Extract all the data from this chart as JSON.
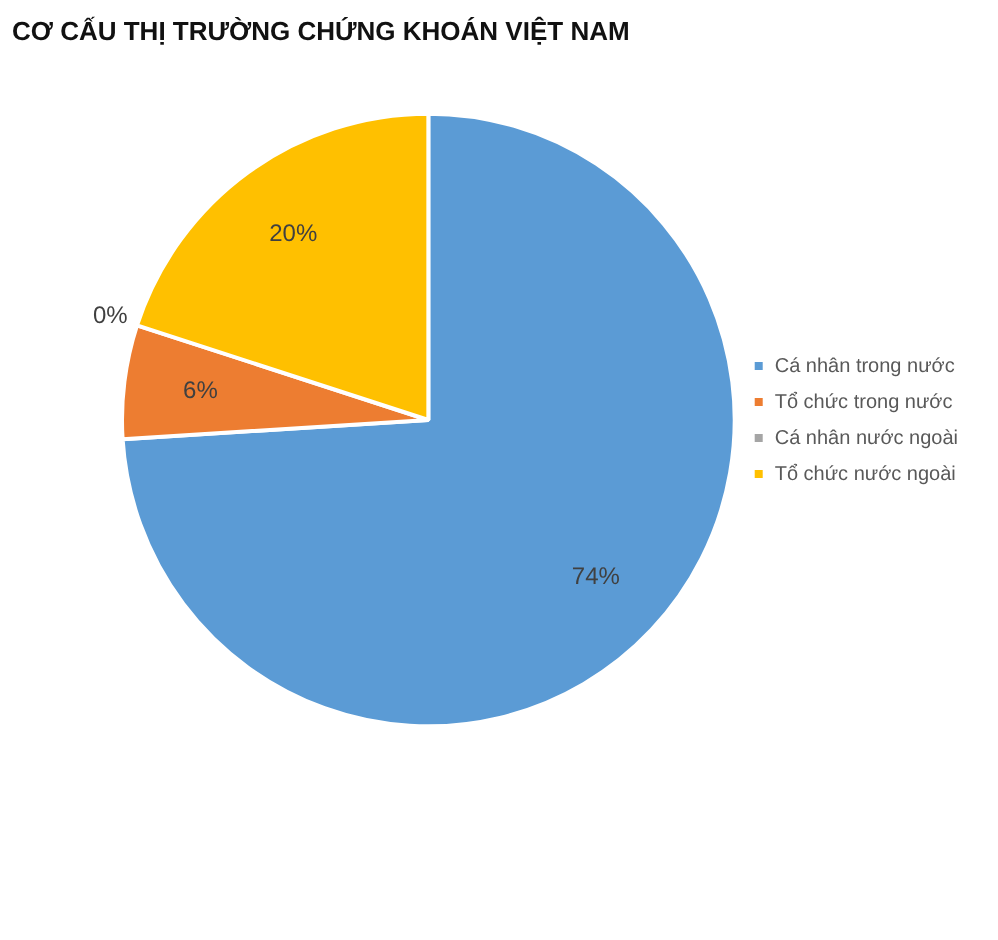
{
  "chart_data": {
    "type": "pie",
    "title": "CƠ CẤU THỊ TRƯỜNG CHỨNG KHOÁN VIỆT NAM",
    "categories": [
      "Cá nhân trong nước",
      "Tổ chức trong nước",
      "Cá nhân nước ngoài",
      "Tổ chức nước ngoài"
    ],
    "values": [
      74,
      6,
      0,
      20
    ],
    "colors": [
      "#5b9bd5",
      "#ed7d31",
      "#a5a5a5",
      "#ffc000"
    ],
    "value_labels": [
      "74%",
      "6%",
      "0%",
      "20%"
    ],
    "legend": "right"
  }
}
